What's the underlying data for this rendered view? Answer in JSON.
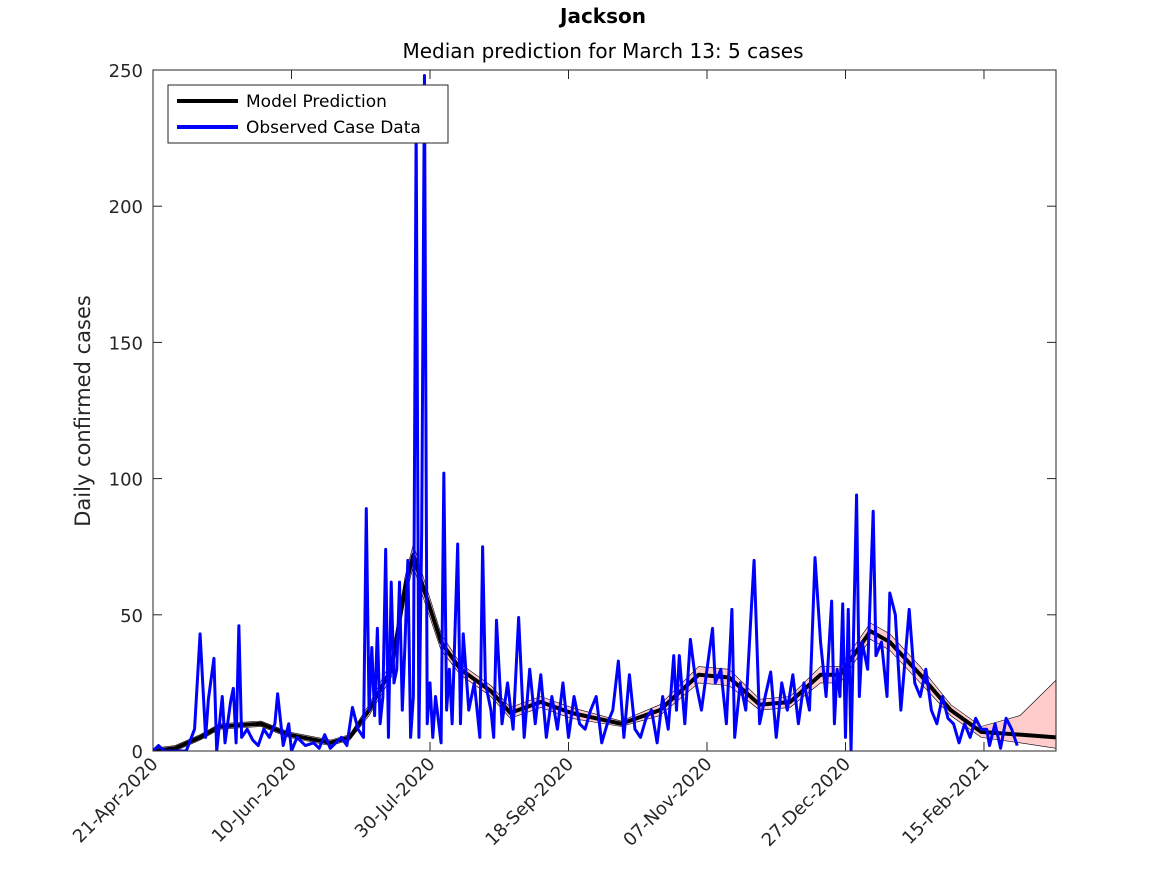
{
  "chart_data": {
    "type": "line",
    "title": "Jackson",
    "subtitle": "Median prediction for March 13: 5 cases",
    "y_label": "Daily confirmed cases",
    "xlim": [
      "2020-04-21",
      "2021-03-13"
    ],
    "ylim": [
      0,
      250
    ],
    "yticks": [
      0,
      50,
      100,
      150,
      200,
      250
    ],
    "xticks": [
      {
        "value": "2020-04-21",
        "label": "21-Apr-2020"
      },
      {
        "value": "2020-06-10",
        "label": "10-Jun-2020"
      },
      {
        "value": "2020-07-30",
        "label": "30-Jul-2020"
      },
      {
        "value": "2020-09-18",
        "label": "18-Sep-2020"
      },
      {
        "value": "2020-11-07",
        "label": "07-Nov-2020"
      },
      {
        "value": "2020-12-27",
        "label": "27-Dec-2020"
      },
      {
        "value": "2021-02-15",
        "label": "15-Feb-2021"
      }
    ],
    "legend": "upper left",
    "series": [
      {
        "name": "Model Prediction",
        "color": "#000000",
        "band_color": "#ffcccc",
        "x": [
          "2020-04-21",
          "2020-04-29",
          "2020-05-08",
          "2020-05-15",
          "2020-05-30",
          "2020-06-09",
          "2020-06-24",
          "2020-07-01",
          "2020-07-08",
          "2020-07-16",
          "2020-07-21",
          "2020-07-24",
          "2020-07-26",
          "2020-08-03",
          "2020-08-10",
          "2020-08-21",
          "2020-08-28",
          "2020-09-08",
          "2020-09-19",
          "2020-10-07",
          "2020-10-21",
          "2020-11-04",
          "2020-11-15",
          "2020-11-26",
          "2020-12-07",
          "2020-12-18",
          "2020-12-25",
          "2021-01-05",
          "2021-01-12",
          "2021-01-23",
          "2021-02-03",
          "2021-02-14",
          "2021-02-28",
          "2021-03-13"
        ],
        "values": [
          0,
          1,
          5,
          9,
          10,
          6,
          3,
          5,
          15,
          30,
          60,
          72,
          65,
          40,
          30,
          22,
          14,
          18,
          14,
          10,
          15,
          28,
          27,
          17,
          18,
          28,
          28,
          44,
          40,
          28,
          15,
          7,
          6,
          5
        ],
        "lower": [
          0,
          0,
          4,
          8,
          9,
          5,
          2,
          4,
          13,
          27,
          56,
          68,
          61,
          37,
          28,
          20,
          12,
          16,
          12,
          9,
          13,
          25,
          24,
          15,
          16,
          25,
          25,
          41,
          37,
          25,
          13,
          5,
          3,
          1
        ],
        "upper": [
          1,
          2,
          6,
          10,
          11,
          7,
          4,
          6,
          17,
          33,
          64,
          76,
          69,
          43,
          32,
          24,
          16,
          20,
          16,
          11,
          17,
          31,
          30,
          19,
          20,
          31,
          31,
          47,
          43,
          31,
          17,
          9,
          13,
          26
        ]
      },
      {
        "name": "Observed Case Data",
        "color": "#0000ff",
        "x": [
          "2020-04-21",
          "2020-04-23",
          "2020-04-25",
          "2020-04-29",
          "2020-05-03",
          "2020-05-06",
          "2020-05-08",
          "2020-05-10",
          "2020-05-11",
          "2020-05-13",
          "2020-05-14",
          "2020-05-16",
          "2020-05-17",
          "2020-05-19",
          "2020-05-20",
          "2020-05-21",
          "2020-05-22",
          "2020-05-23",
          "2020-05-25",
          "2020-05-27",
          "2020-05-29",
          "2020-05-31",
          "2020-06-02",
          "2020-06-04",
          "2020-06-05",
          "2020-06-07",
          "2020-06-09",
          "2020-06-10",
          "2020-06-12",
          "2020-06-15",
          "2020-06-18",
          "2020-06-20",
          "2020-06-22",
          "2020-06-24",
          "2020-06-26",
          "2020-06-28",
          "2020-06-30",
          "2020-07-02",
          "2020-07-04",
          "2020-07-06",
          "2020-07-07",
          "2020-07-08",
          "2020-07-09",
          "2020-07-10",
          "2020-07-11",
          "2020-07-12",
          "2020-07-13",
          "2020-07-14",
          "2020-07-15",
          "2020-07-16",
          "2020-07-17",
          "2020-07-18",
          "2020-07-19",
          "2020-07-20",
          "2020-07-21",
          "2020-07-22",
          "2020-07-23",
          "2020-07-24",
          "2020-07-25",
          "2020-07-26",
          "2020-07-27",
          "2020-07-28",
          "2020-07-29",
          "2020-07-30",
          "2020-07-31",
          "2020-08-01",
          "2020-08-03",
          "2020-08-04",
          "2020-08-05",
          "2020-08-06",
          "2020-08-07",
          "2020-08-09",
          "2020-08-10",
          "2020-08-11",
          "2020-08-13",
          "2020-08-15",
          "2020-08-17",
          "2020-08-18",
          "2020-08-19",
          "2020-08-21",
          "2020-08-22",
          "2020-08-23",
          "2020-08-25",
          "2020-08-27",
          "2020-08-29",
          "2020-08-31",
          "2020-09-02",
          "2020-09-04",
          "2020-09-06",
          "2020-09-08",
          "2020-09-10",
          "2020-09-12",
          "2020-09-14",
          "2020-09-16",
          "2020-09-18",
          "2020-09-20",
          "2020-09-22",
          "2020-09-24",
          "2020-09-26",
          "2020-09-28",
          "2020-09-30",
          "2020-10-02",
          "2020-10-04",
          "2020-10-06",
          "2020-10-08",
          "2020-10-10",
          "2020-10-12",
          "2020-10-14",
          "2020-10-16",
          "2020-10-18",
          "2020-10-20",
          "2020-10-22",
          "2020-10-24",
          "2020-10-26",
          "2020-10-27",
          "2020-10-28",
          "2020-10-30",
          "2020-11-01",
          "2020-11-03",
          "2020-11-05",
          "2020-11-07",
          "2020-11-09",
          "2020-11-10",
          "2020-11-12",
          "2020-11-14",
          "2020-11-16",
          "2020-11-17",
          "2020-11-19",
          "2020-11-21",
          "2020-11-23",
          "2020-11-24",
          "2020-11-26",
          "2020-11-28",
          "2020-11-30",
          "2020-12-02",
          "2020-12-04",
          "2020-12-06",
          "2020-12-08",
          "2020-12-10",
          "2020-12-12",
          "2020-12-14",
          "2020-12-16",
          "2020-12-18",
          "2020-12-20",
          "2020-12-22",
          "2020-12-23",
          "2020-12-24",
          "2020-12-25",
          "2020-12-26",
          "2020-12-27",
          "2020-12-28",
          "2020-12-29",
          "2020-12-31",
          "2021-01-01",
          "2021-01-02",
          "2021-01-04",
          "2021-01-06",
          "2021-01-07",
          "2021-01-09",
          "2021-01-11",
          "2021-01-12",
          "2021-01-14",
          "2021-01-16",
          "2021-01-19",
          "2021-01-21",
          "2021-01-23",
          "2021-01-25",
          "2021-01-27",
          "2021-01-29",
          "2021-01-31",
          "2021-02-02",
          "2021-02-04",
          "2021-02-06",
          "2021-02-08",
          "2021-02-10",
          "2021-02-12",
          "2021-02-14",
          "2021-02-16",
          "2021-02-17",
          "2021-02-19",
          "2021-02-21",
          "2021-02-23",
          "2021-02-25",
          "2021-02-27"
        ],
        "values": [
          0,
          2,
          0,
          0,
          0,
          8,
          43,
          5,
          19,
          34,
          0,
          20,
          3,
          18,
          23,
          3,
          46,
          5,
          8,
          4,
          2,
          8,
          5,
          10,
          21,
          2,
          10,
          0,
          5,
          2,
          3,
          1,
          6,
          1,
          3,
          5,
          2,
          16,
          8,
          5,
          89,
          15,
          38,
          13,
          45,
          10,
          20,
          74,
          5,
          62,
          25,
          30,
          62,
          15,
          40,
          70,
          5,
          20,
          230,
          5,
          80,
          248,
          10,
          25,
          5,
          20,
          3,
          102,
          15,
          30,
          10,
          76,
          10,
          43,
          15,
          25,
          5,
          75,
          25,
          15,
          5,
          48,
          10,
          25,
          8,
          49,
          5,
          30,
          10,
          28,
          5,
          20,
          8,
          25,
          5,
          20,
          10,
          8,
          15,
          20,
          3,
          10,
          15,
          33,
          5,
          28,
          8,
          5,
          12,
          15,
          3,
          20,
          8,
          35,
          15,
          35,
          10,
          41,
          25,
          15,
          30,
          45,
          25,
          30,
          10,
          52,
          5,
          25,
          15,
          52,
          70,
          10,
          20,
          29,
          5,
          25,
          15,
          28,
          10,
          25,
          15,
          71,
          40,
          20,
          55,
          10,
          30,
          20,
          54,
          5,
          52,
          0,
          94,
          20,
          40,
          30,
          88,
          35,
          40,
          20,
          58,
          50,
          15,
          52,
          25,
          20,
          30,
          15,
          10,
          20,
          12,
          10,
          3,
          10,
          5,
          12,
          8,
          8,
          2,
          10,
          1,
          12,
          8,
          2
        ]
      }
    ]
  }
}
